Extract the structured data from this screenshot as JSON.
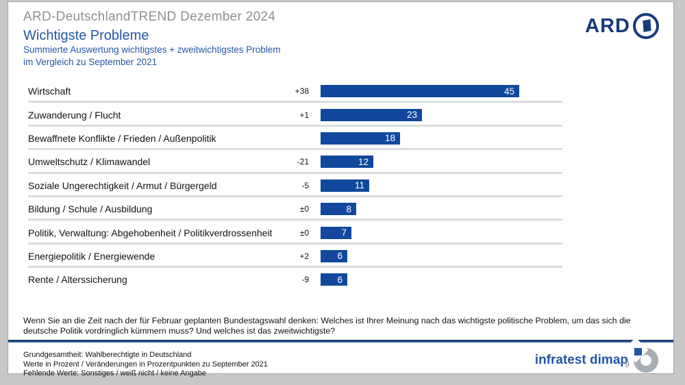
{
  "slide": {
    "kicker": "ARD-DeutschlandTREND Dezember 2024",
    "title": "Wichtigste Probleme",
    "subtitle": [
      "Summierte Auswertung wichtigstes + zweitwichtigstes Problem",
      "im Vergleich zu September 2021"
    ],
    "page_number": "9"
  },
  "logos": {
    "ard": "ARD",
    "infratest": "infratest dimap"
  },
  "chart_data": {
    "type": "bar",
    "orientation": "horizontal",
    "title": "Wichtigste Probleme",
    "value_unit": "Prozent",
    "change_unit": "Veränderungen in Prozentpunkten zu September 2021",
    "xlim": [
      0,
      50
    ],
    "bar_color": "#11489e",
    "categories": [
      "Wirtschaft",
      "Zuwanderung / Flucht",
      "Bewaffnete Konflikte / Frieden / Außenpolitik",
      "Umweltschutz / Klimawandel",
      "Soziale Ungerechtigkeit / Armut / Bürgergeld",
      "Bildung / Schule / Ausbildung",
      "Politik, Verwaltung: Abgehobenheit / Politikverdrossenheit",
      "Energiepolitik / Energiewende",
      "Rente / Alterssicherung"
    ],
    "values": [
      45,
      23,
      18,
      12,
      11,
      8,
      7,
      6,
      6
    ],
    "changes": [
      "+38",
      "+1",
      "",
      "-21",
      "-5",
      "±0",
      "±0",
      "+2",
      "-9"
    ],
    "rows": [
      {
        "label": "Wirtschaft",
        "change": "+38",
        "value": 45
      },
      {
        "label": "Zuwanderung / Flucht",
        "change": "+1",
        "value": 23
      },
      {
        "label": "Bewaffnete Konflikte / Frieden / Außenpolitik",
        "change": "",
        "value": 18
      },
      {
        "label": "Umweltschutz / Klimawandel",
        "change": "-21",
        "value": 12
      },
      {
        "label": "Soziale Ungerechtigkeit / Armut / Bürgergeld",
        "change": "-5",
        "value": 11
      },
      {
        "label": "Bildung / Schule / Ausbildung",
        "change": "±0",
        "value": 8
      },
      {
        "label": "Politik, Verwaltung: Abgehobenheit / Politikverdrossenheit",
        "change": "±0",
        "value": 7
      },
      {
        "label": "Energiepolitik / Energiewende",
        "change": "+2",
        "value": 6
      },
      {
        "label": "Rente / Alterssicherung",
        "change": "-9",
        "value": 6
      }
    ]
  },
  "question": "Wenn Sie an die Zeit nach der für Februar geplanten Bundestagswahl denken: Welches ist Ihrer Meinung nach das wichtigste politische Problem, um das sich die deutsche Politik vordringlich kümmern muss? Und welches ist das zweitwichtigste?",
  "footnotes": [
    "Grundgesamtheit: Wahlberechtigte in Deutschland",
    "Werte in Prozent / Veränderungen in Prozentpunkten zu September 2021",
    "Fehlende Werte: Sonstiges / weiß nicht / keine Angabe"
  ]
}
